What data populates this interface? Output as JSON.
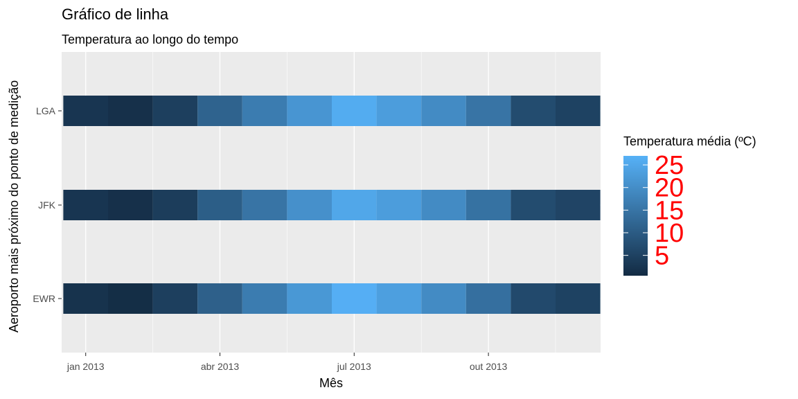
{
  "chart_data": {
    "type": "heatmap",
    "title": "Gráfico de linha",
    "subtitle": "Temperatura ao longo do tempo",
    "xlabel": "Mês",
    "ylabel": "Aeroporto mais próximo do ponto de medição",
    "x_ticks": [
      "jan 2013",
      "abr 2013",
      "jul 2013",
      "out 2013"
    ],
    "months": [
      "2013-01",
      "2013-02",
      "2013-03",
      "2013-04",
      "2013-05",
      "2013-06",
      "2013-07",
      "2013-08",
      "2013-09",
      "2013-10",
      "2013-11",
      "2013-12"
    ],
    "rows": [
      {
        "name": "LGA",
        "values": [
          2.5,
          1.5,
          4.5,
          11.5,
          16.5,
          21.5,
          26.0,
          23.0,
          19.5,
          15.0,
          7.0,
          5.0
        ]
      },
      {
        "name": "JFK",
        "values": [
          2.5,
          1.5,
          4.0,
          10.5,
          15.0,
          20.5,
          25.0,
          23.0,
          19.5,
          14.5,
          7.0,
          5.5
        ]
      },
      {
        "name": "EWR",
        "values": [
          2.0,
          1.0,
          4.5,
          11.0,
          16.5,
          22.0,
          26.5,
          23.5,
          19.5,
          14.0,
          6.5,
          5.0
        ]
      }
    ],
    "legend": {
      "title": "Temperatura média (ºC)",
      "breaks": [
        5,
        10,
        15,
        20,
        25
      ],
      "range": [
        0.5,
        27
      ],
      "low_color": "#132B43",
      "high_color": "#56B1F7",
      "label_color": "#ff0000"
    },
    "panel_background": "#ebebeb",
    "grid": true
  }
}
